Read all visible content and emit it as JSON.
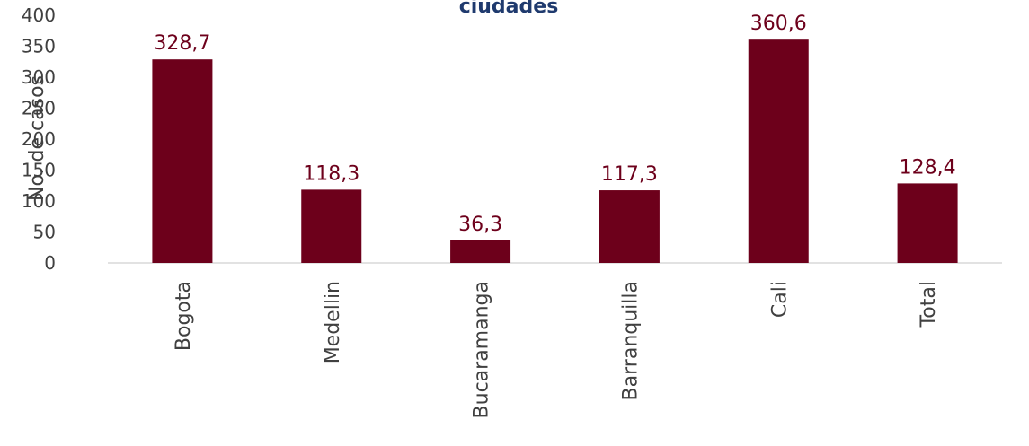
{
  "colors": {
    "bar": "#6d001b",
    "label": "#6d001b",
    "title": "#1f3a6e",
    "axis_text": "#404040",
    "axis_line": "#d9d9d9"
  },
  "chart_data": {
    "type": "bar",
    "title": "ciudades",
    "xlabel": "",
    "ylabel": "No. de casos",
    "ylim": [
      0,
      400
    ],
    "yticks": [
      0,
      50,
      100,
      150,
      200,
      250,
      300,
      350,
      400
    ],
    "grid": false,
    "categories": [
      "Bogota",
      "Medellin",
      "Bucaramanga",
      "Barranquilla",
      "Cali",
      "Total"
    ],
    "values": [
      328.7,
      118.3,
      36.3,
      117.3,
      360.6,
      128.4
    ],
    "value_labels": [
      "328,7",
      "118,3",
      "36,3",
      "117,3",
      "360,6",
      "128,4"
    ]
  }
}
